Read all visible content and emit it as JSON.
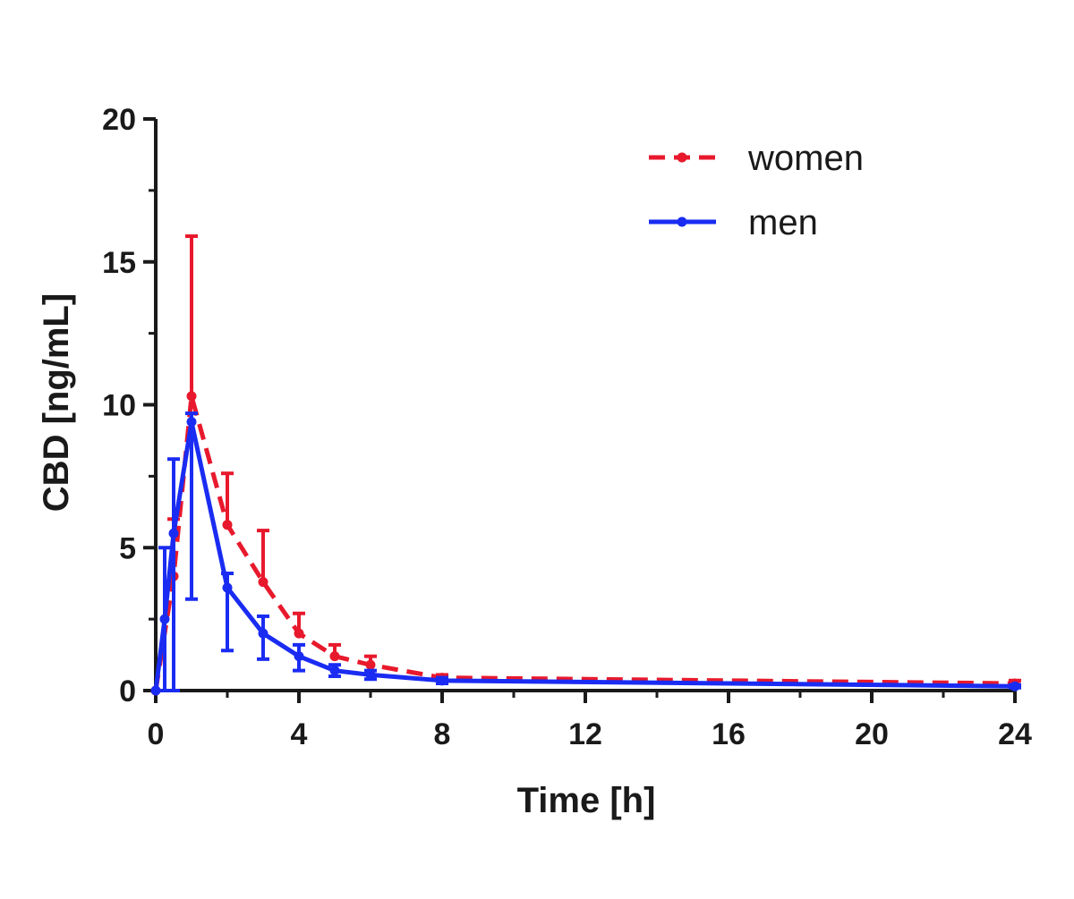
{
  "chart_data": {
    "type": "line",
    "title": "",
    "xlabel": "Time [h]",
    "ylabel": "CBD [ng/mL]",
    "xlim": [
      0,
      24
    ],
    "ylim": [
      0,
      20
    ],
    "xticks": [
      0,
      4,
      8,
      12,
      16,
      20,
      24
    ],
    "yticks": [
      0,
      5,
      10,
      15,
      20
    ],
    "xtick_labels": [
      "0",
      "4",
      "8",
      "12",
      "16",
      "20",
      "24"
    ],
    "ytick_labels": [
      "0",
      "5",
      "10",
      "15",
      "20"
    ],
    "grid": false,
    "legend_position": "top-right",
    "series": [
      {
        "name": "women",
        "color": "#e8192c",
        "line_style": "dashed",
        "x": [
          0,
          0.5,
          1,
          2,
          3,
          4,
          5,
          6,
          8,
          24
        ],
        "y": [
          0,
          4.0,
          10.3,
          5.8,
          3.8,
          2.0,
          1.2,
          0.9,
          0.45,
          0.25
        ],
        "error_upper": [
          0,
          2.0,
          5.6,
          1.8,
          1.8,
          0.7,
          0.4,
          0.3,
          0.1,
          0.1
        ]
      },
      {
        "name": "men",
        "color": "#1a2cf2",
        "line_style": "solid",
        "x": [
          0,
          0.25,
          0.5,
          1,
          2,
          3,
          4,
          5,
          6,
          8,
          24
        ],
        "y": [
          0,
          2.5,
          5.5,
          9.4,
          3.6,
          2.0,
          1.2,
          0.7,
          0.55,
          0.35,
          0.15
        ],
        "error_lower": [
          0,
          2.5,
          5.5,
          6.2,
          2.2,
          0.9,
          0.5,
          0.2,
          0.15,
          0.1,
          0.05
        ],
        "error_upper": [
          0,
          2.5,
          2.6,
          0.3,
          0.5,
          0.6,
          0.4,
          0.2,
          0.15,
          0.1,
          0.05
        ]
      }
    ]
  }
}
